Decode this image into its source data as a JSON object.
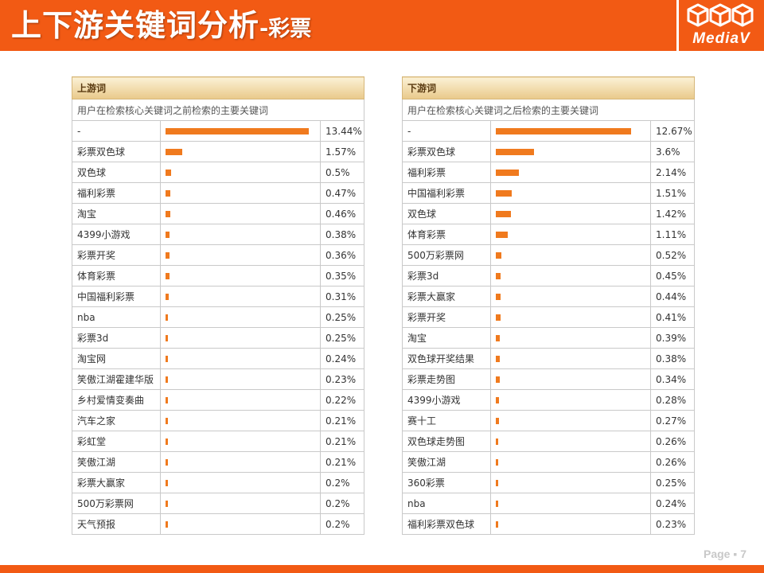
{
  "header": {
    "title_main": "上下游关键词分析",
    "title_sub": "-彩票",
    "logo_text": "MediaV"
  },
  "colors": {
    "accent": "#f25a14",
    "bar": "#f07a1e"
  },
  "upstream": {
    "title": "上游词",
    "description": "用户在检索核心关键词之前检索的主要关键词",
    "rows": [
      {
        "keyword": "-",
        "value": 13.44,
        "label": "13.44%"
      },
      {
        "keyword": "彩票双色球",
        "value": 1.57,
        "label": "1.57%"
      },
      {
        "keyword": "双色球",
        "value": 0.5,
        "label": "0.5%"
      },
      {
        "keyword": "福利彩票",
        "value": 0.47,
        "label": "0.47%"
      },
      {
        "keyword": "淘宝",
        "value": 0.46,
        "label": "0.46%"
      },
      {
        "keyword": "4399小游戏",
        "value": 0.38,
        "label": "0.38%"
      },
      {
        "keyword": "彩票开奖",
        "value": 0.36,
        "label": "0.36%"
      },
      {
        "keyword": "体育彩票",
        "value": 0.35,
        "label": "0.35%"
      },
      {
        "keyword": "中国福利彩票",
        "value": 0.31,
        "label": "0.31%"
      },
      {
        "keyword": "nba",
        "value": 0.25,
        "label": "0.25%"
      },
      {
        "keyword": "彩票3d",
        "value": 0.25,
        "label": "0.25%"
      },
      {
        "keyword": "淘宝网",
        "value": 0.24,
        "label": "0.24%"
      },
      {
        "keyword": "笑傲江湖霍建华版",
        "value": 0.23,
        "label": "0.23%"
      },
      {
        "keyword": "乡村爱情变奏曲",
        "value": 0.22,
        "label": "0.22%"
      },
      {
        "keyword": "汽车之家",
        "value": 0.21,
        "label": "0.21%"
      },
      {
        "keyword": "彩虹堂",
        "value": 0.21,
        "label": "0.21%"
      },
      {
        "keyword": "笑傲江湖",
        "value": 0.21,
        "label": "0.21%"
      },
      {
        "keyword": "彩票大赢家",
        "value": 0.2,
        "label": "0.2%"
      },
      {
        "keyword": "500万彩票网",
        "value": 0.2,
        "label": "0.2%"
      },
      {
        "keyword": "天气预报",
        "value": 0.2,
        "label": "0.2%"
      }
    ]
  },
  "downstream": {
    "title": "下游词",
    "description": "用户在检索核心关键词之后检索的主要关键词",
    "rows": [
      {
        "keyword": "-",
        "value": 12.67,
        "label": "12.67%"
      },
      {
        "keyword": "彩票双色球",
        "value": 3.6,
        "label": "3.6%"
      },
      {
        "keyword": "福利彩票",
        "value": 2.14,
        "label": "2.14%"
      },
      {
        "keyword": "中国福利彩票",
        "value": 1.51,
        "label": "1.51%"
      },
      {
        "keyword": "双色球",
        "value": 1.42,
        "label": "1.42%"
      },
      {
        "keyword": "体育彩票",
        "value": 1.11,
        "label": "1.11%"
      },
      {
        "keyword": "500万彩票网",
        "value": 0.52,
        "label": "0.52%"
      },
      {
        "keyword": "彩票3d",
        "value": 0.45,
        "label": "0.45%"
      },
      {
        "keyword": "彩票大赢家",
        "value": 0.44,
        "label": "0.44%"
      },
      {
        "keyword": "彩票开奖",
        "value": 0.41,
        "label": "0.41%"
      },
      {
        "keyword": "淘宝",
        "value": 0.39,
        "label": "0.39%"
      },
      {
        "keyword": "双色球开奖结果",
        "value": 0.38,
        "label": "0.38%"
      },
      {
        "keyword": "彩票走势图",
        "value": 0.34,
        "label": "0.34%"
      },
      {
        "keyword": "4399小游戏",
        "value": 0.28,
        "label": "0.28%"
      },
      {
        "keyword": "赛十工",
        "value": 0.27,
        "label": "0.27%"
      },
      {
        "keyword": "双色球走势图",
        "value": 0.26,
        "label": "0.26%"
      },
      {
        "keyword": "笑傲江湖",
        "value": 0.26,
        "label": "0.26%"
      },
      {
        "keyword": "360彩票",
        "value": 0.25,
        "label": "0.25%"
      },
      {
        "keyword": "nba",
        "value": 0.24,
        "label": "0.24%"
      },
      {
        "keyword": "福利彩票双色球",
        "value": 0.23,
        "label": "0.23%"
      }
    ]
  },
  "footer": {
    "page_label": "Page ▪ 7"
  }
}
